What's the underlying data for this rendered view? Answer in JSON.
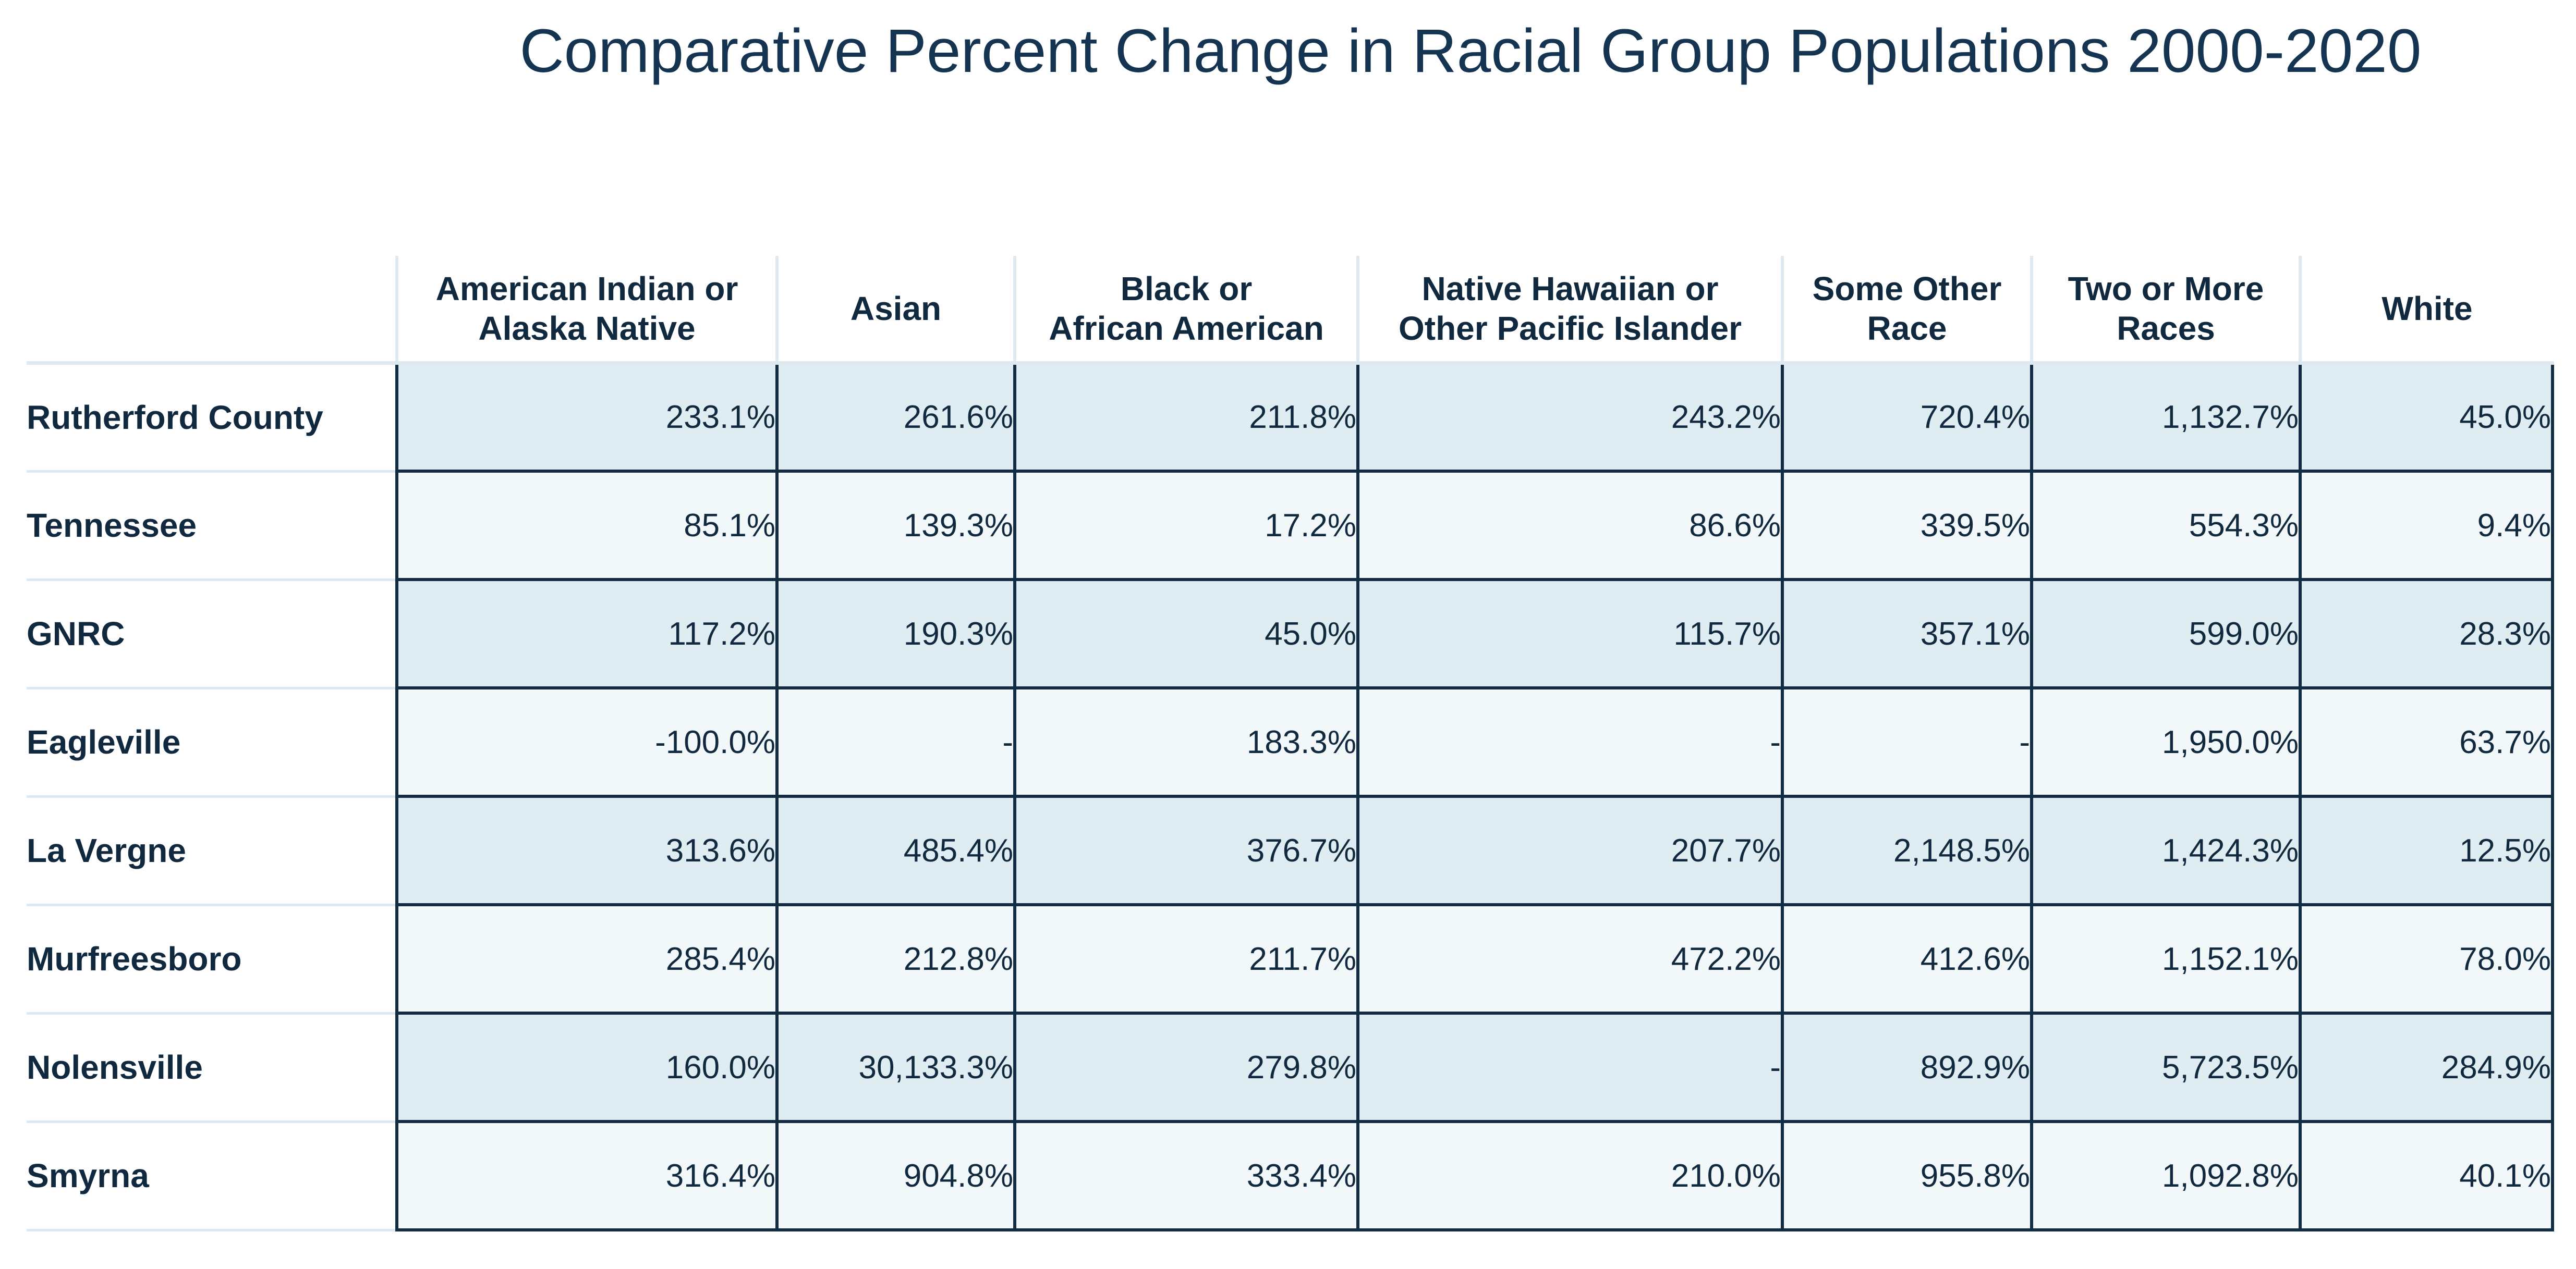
{
  "chart_data": {
    "type": "table",
    "title": "Comparative Percent Change in Racial Group Populations 2000-2020",
    "columns": [
      "American Indian or\nAlaska Native",
      "Asian",
      "Black or\nAfrican American",
      "Native Hawaiian or\nOther Pacific Islander",
      "Some Other\nRace",
      "Two or More\nRaces",
      "White"
    ],
    "rows": [
      {
        "name": "Rutherford County",
        "values": [
          "233.1%",
          "261.6%",
          "211.8%",
          "243.2%",
          "720.4%",
          "1,132.7%",
          "45.0%"
        ]
      },
      {
        "name": "Tennessee",
        "values": [
          "85.1%",
          "139.3%",
          "17.2%",
          "86.6%",
          "339.5%",
          "554.3%",
          "9.4%"
        ]
      },
      {
        "name": "GNRC",
        "values": [
          "117.2%",
          "190.3%",
          "45.0%",
          "115.7%",
          "357.1%",
          "599.0%",
          "28.3%"
        ]
      },
      {
        "name": "Eagleville",
        "values": [
          "-100.0%",
          "-",
          "183.3%",
          "-",
          "-",
          "1,950.0%",
          "63.7%"
        ]
      },
      {
        "name": "La Vergne",
        "values": [
          "313.6%",
          "485.4%",
          "376.7%",
          "207.7%",
          "2,148.5%",
          "1,424.3%",
          "12.5%"
        ]
      },
      {
        "name": "Murfreesboro",
        "values": [
          "285.4%",
          "212.8%",
          "211.7%",
          "472.2%",
          "412.6%",
          "1,152.1%",
          "78.0%"
        ]
      },
      {
        "name": "Nolensville",
        "values": [
          "160.0%",
          "30,133.3%",
          "279.8%",
          "-",
          "892.9%",
          "5,723.5%",
          "284.9%"
        ]
      },
      {
        "name": "Smyrna",
        "values": [
          "316.4%",
          "904.8%",
          "333.4%",
          "210.0%",
          "955.8%",
          "1,092.8%",
          "40.1%"
        ]
      }
    ]
  },
  "colors": {
    "header_text": "#10293f",
    "row_band_dark": "#dfecf1",
    "row_band_light": "#f2f8f9",
    "cell_border": "#122c44"
  }
}
